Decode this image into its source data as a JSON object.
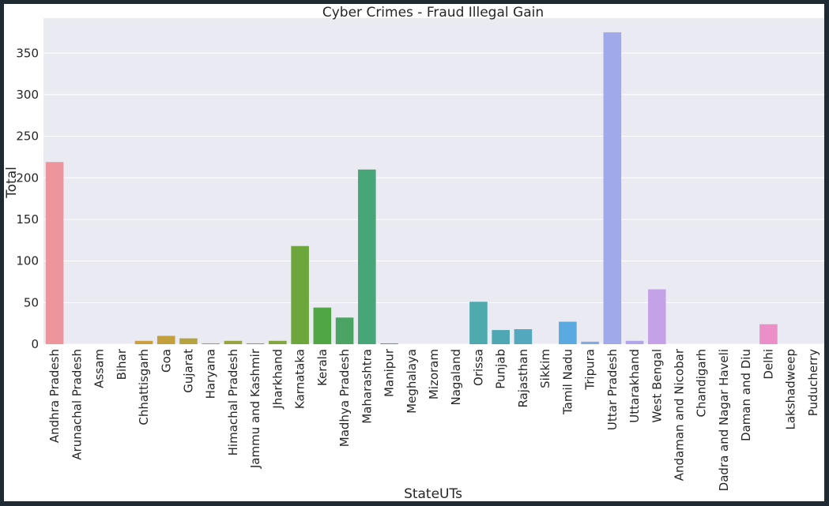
{
  "chart_data": {
    "type": "bar",
    "title": "Cyber Crimes - Fraud Illegal Gain",
    "xlabel": "StateUTs",
    "ylabel": "Total",
    "ylim": [
      0,
      392
    ],
    "yticks": [
      0,
      50,
      100,
      150,
      200,
      250,
      300,
      350
    ],
    "grid": true,
    "legend": "none",
    "background": "#eaeaf2",
    "categories": [
      "Andhra Pradesh",
      "Arunachal Pradesh",
      "Assam",
      "Bihar",
      "Chhattisgarh",
      "Goa",
      "Gujarat",
      "Haryana",
      "Himachal Pradesh",
      "Jammu and Kashmir",
      "Jharkhand",
      "Karnataka",
      "Kerala",
      "Madhya Pradesh",
      "Maharashtra",
      "Manipur",
      "Meghalaya",
      "Mizoram",
      "Nagaland",
      "Orissa",
      "Punjab",
      "Rajasthan",
      "Sikkim",
      "Tamil Nadu",
      "Tripura",
      "Uttar Pradesh",
      "Uttarakhand",
      "West Bengal",
      "Andaman and Nicobar",
      "Chandigarh",
      "Dadra and Nagar Haveli",
      "Daman and Diu",
      "Delhi",
      "Lakshadweep",
      "Puducherry"
    ],
    "values": [
      219,
      0,
      0,
      0,
      4,
      10,
      7,
      1,
      4,
      1,
      4,
      118,
      44,
      32,
      210,
      1,
      0,
      0,
      0,
      51,
      17,
      18,
      0,
      27,
      3,
      375,
      4,
      66,
      0,
      0,
      0,
      0,
      24,
      0,
      0
    ],
    "colors": [
      "#ee959c",
      "#eb9385",
      "#e0996d",
      "#d59e55",
      "#cc9f3f",
      "#c3a03c",
      "#b5a33f",
      "#a7a43e",
      "#9aa43e",
      "#8ea63e",
      "#80a63d",
      "#6da63d",
      "#50a644",
      "#4ba463",
      "#47a677",
      "#4aa785",
      "#49a68f",
      "#4aa699",
      "#4ba5a3",
      "#4eaaad",
      "#4fa7b3",
      "#53a8bd",
      "#58a9c8",
      "#5aaadf",
      "#80a9e7",
      "#a0aaeb",
      "#b3a5ec",
      "#c5a2e8",
      "#d29fe3",
      "#de99dd",
      "#e694d3",
      "#e98fc6",
      "#eb8fc8",
      "#ec91b8",
      "#ee93a9"
    ]
  }
}
